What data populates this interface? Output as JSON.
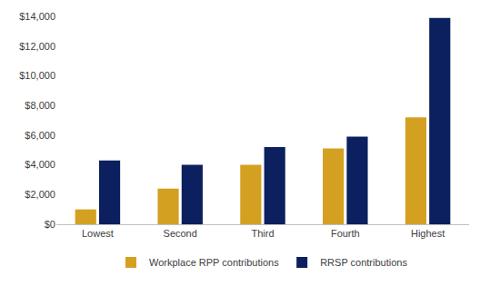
{
  "chart_data": {
    "type": "bar",
    "categories": [
      "Lowest",
      "Second",
      "Third",
      "Fourth",
      "Highest"
    ],
    "series": [
      {
        "name": "Workplace RPP contributions",
        "color": "#D4A021",
        "values": [
          1000,
          2400,
          4000,
          5100,
          7200
        ]
      },
      {
        "name": "RRSP contributions",
        "color": "#0C1F5E",
        "values": [
          4300,
          4000,
          5200,
          5900,
          13900
        ]
      }
    ],
    "ylim": [
      0,
      14000
    ],
    "yticks": [
      {
        "value": 0,
        "label": "$0"
      },
      {
        "value": 2000,
        "label": "$2,000"
      },
      {
        "value": 4000,
        "label": "$4,000"
      },
      {
        "value": 6000,
        "label": "$6,000"
      },
      {
        "value": 8000,
        "label": "$8,000"
      },
      {
        "value": 10000,
        "label": "$10,000"
      },
      {
        "value": 12000,
        "label": "$12,000"
      },
      {
        "value": 14000,
        "label": "$14,000"
      }
    ],
    "grid": false,
    "legend": "bottom"
  }
}
